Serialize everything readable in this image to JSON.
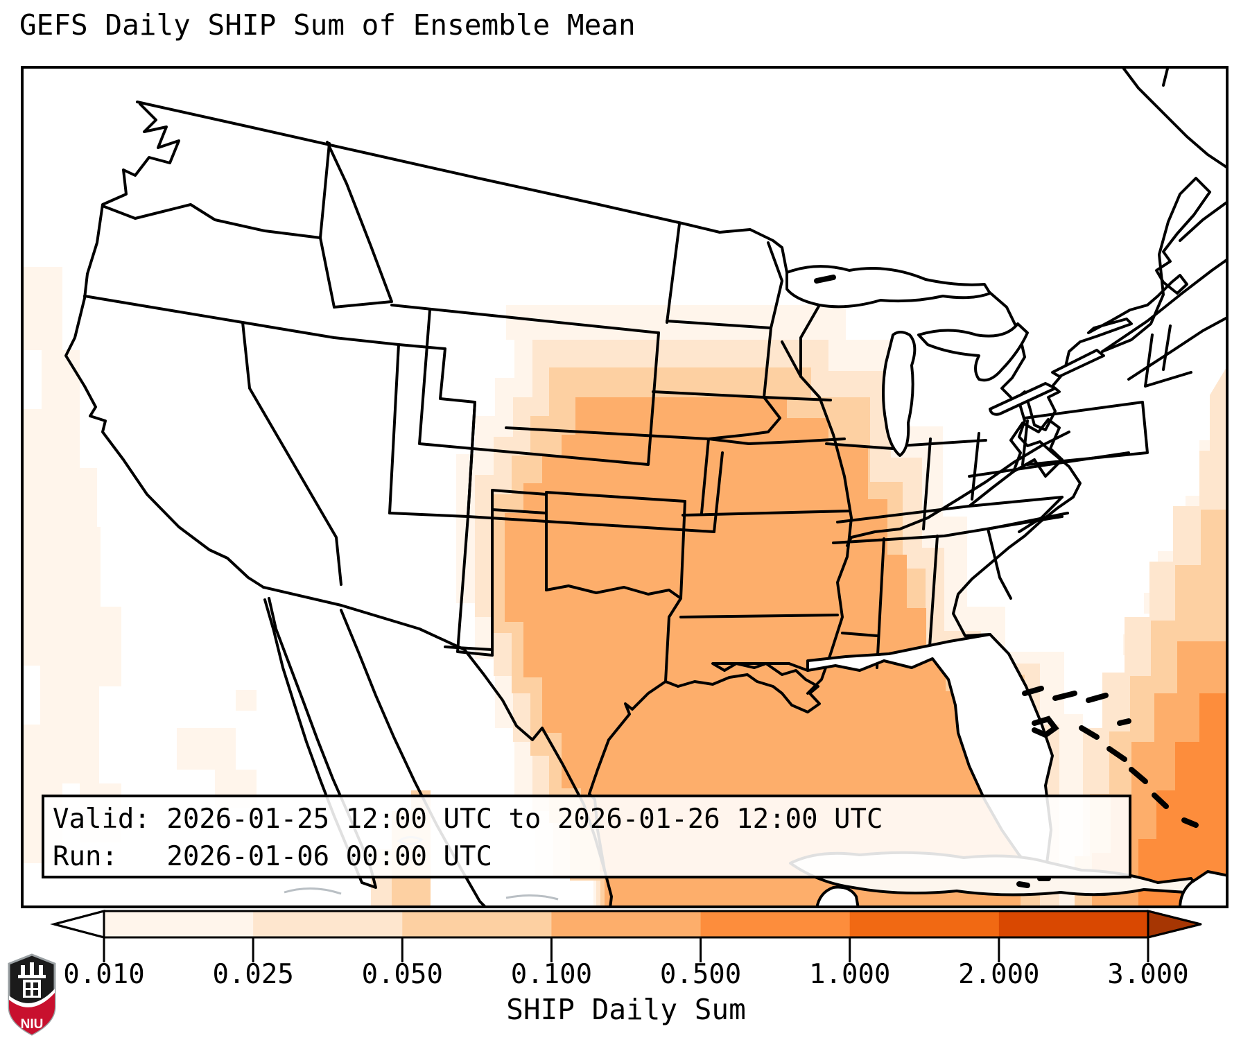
{
  "title": "GEFS Daily SHIP Sum of Ensemble Mean",
  "info_box": {
    "valid_line": "Valid: 2026-01-25 12:00 UTC to 2026-01-26 12:00 UTC",
    "run_line": "Run:   2026-01-06 00:00 UTC"
  },
  "colorbar": {
    "label": "SHIP Daily Sum",
    "ticks": [
      "0.010",
      "0.025",
      "0.050",
      "0.100",
      "0.500",
      "1.000",
      "2.000",
      "3.000"
    ],
    "segment_colors": [
      "#fff5eb",
      "#fee6ce",
      "#fdd0a2",
      "#fdae6b",
      "#fd8d3c",
      "#f16913",
      "#d94801"
    ],
    "under_arrow_color": "#ffffff",
    "over_arrow_color": "#a63603"
  },
  "map": {
    "land_color": "#ffffff",
    "outline_color": "#000000",
    "level_colors": {
      "0.010": "#fff5eb",
      "0.025": "#fee6ce",
      "0.050": "#fdd0a2",
      "0.100": "#fdae6b",
      "0.500": "#fd8d3c",
      "1.000": "#f16913",
      "2.000": "#d94801",
      "3.000": "#a63603"
    }
  },
  "logo": {
    "text": "NIU",
    "red": "#c8102e",
    "black": "#1b1b1b"
  }
}
